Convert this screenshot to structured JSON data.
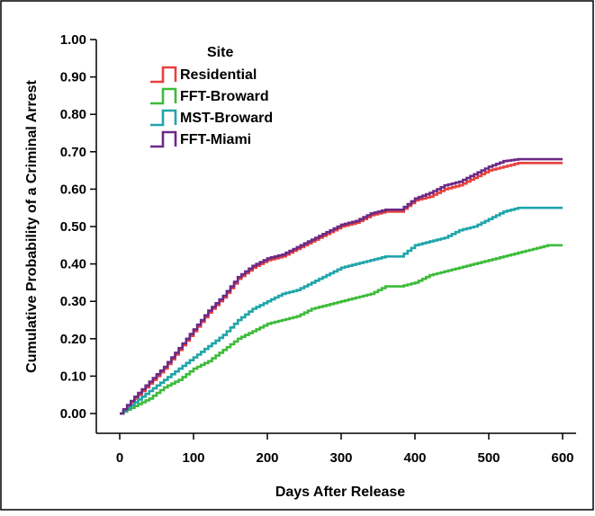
{
  "chart_data": {
    "type": "line",
    "step": true,
    "xlabel": "Days After Release",
    "ylabel": "Cumulative Probability of a Criminal Arrest",
    "xlim": [
      0,
      600
    ],
    "ylim": [
      0,
      1.0
    ],
    "xticks": [
      "0",
      "100",
      "200",
      "300",
      "400",
      "500",
      "600"
    ],
    "yticks": [
      "0.00",
      "0.10",
      "0.20",
      "0.30",
      "0.40",
      "0.50",
      "0.60",
      "0.70",
      "0.80",
      "0.90",
      "1.00"
    ],
    "grid": false,
    "legend": {
      "title": "Site",
      "position": "top-left"
    },
    "series": [
      {
        "name": "Residential",
        "color": "#e8413c",
        "x": [
          0,
          20,
          40,
          60,
          80,
          100,
          120,
          140,
          160,
          180,
          200,
          220,
          240,
          260,
          280,
          300,
          320,
          340,
          360,
          380,
          400,
          420,
          440,
          460,
          480,
          500,
          520,
          540,
          560,
          580,
          600
        ],
        "y": [
          0.0,
          0.04,
          0.08,
          0.12,
          0.17,
          0.22,
          0.27,
          0.31,
          0.36,
          0.39,
          0.41,
          0.42,
          0.44,
          0.46,
          0.48,
          0.5,
          0.51,
          0.53,
          0.54,
          0.54,
          0.57,
          0.58,
          0.6,
          0.61,
          0.63,
          0.65,
          0.66,
          0.67,
          0.67,
          0.67,
          0.67
        ]
      },
      {
        "name": "FFT-Broward",
        "color": "#3dbb3a",
        "x": [
          0,
          20,
          40,
          60,
          80,
          100,
          120,
          140,
          160,
          180,
          200,
          220,
          240,
          260,
          280,
          300,
          320,
          340,
          360,
          380,
          400,
          420,
          440,
          460,
          480,
          500,
          520,
          540,
          560,
          580,
          600
        ],
        "y": [
          0.0,
          0.02,
          0.04,
          0.07,
          0.09,
          0.12,
          0.14,
          0.17,
          0.2,
          0.22,
          0.24,
          0.25,
          0.26,
          0.28,
          0.29,
          0.3,
          0.31,
          0.32,
          0.34,
          0.34,
          0.35,
          0.37,
          0.38,
          0.39,
          0.4,
          0.41,
          0.42,
          0.43,
          0.44,
          0.45,
          0.45
        ]
      },
      {
        "name": "MST-Broward",
        "color": "#1fa5a9",
        "x": [
          0,
          20,
          40,
          60,
          80,
          100,
          120,
          140,
          160,
          180,
          200,
          220,
          240,
          260,
          280,
          300,
          320,
          340,
          360,
          380,
          400,
          420,
          440,
          460,
          480,
          500,
          520,
          540,
          560,
          580,
          600
        ],
        "y": [
          0.0,
          0.03,
          0.06,
          0.09,
          0.12,
          0.15,
          0.18,
          0.21,
          0.25,
          0.28,
          0.3,
          0.32,
          0.33,
          0.35,
          0.37,
          0.39,
          0.4,
          0.41,
          0.42,
          0.42,
          0.45,
          0.46,
          0.47,
          0.49,
          0.5,
          0.52,
          0.54,
          0.55,
          0.55,
          0.55,
          0.55
        ]
      },
      {
        "name": "FFT-Miami",
        "color": "#6c2a86",
        "x": [
          0,
          20,
          40,
          60,
          80,
          100,
          120,
          140,
          160,
          180,
          200,
          220,
          240,
          260,
          280,
          300,
          320,
          340,
          360,
          380,
          400,
          420,
          440,
          460,
          480,
          500,
          520,
          540,
          560,
          580,
          600
        ],
        "y": [
          0.0,
          0.045,
          0.085,
          0.125,
          0.175,
          0.225,
          0.275,
          0.315,
          0.365,
          0.395,
          0.415,
          0.425,
          0.445,
          0.465,
          0.485,
          0.505,
          0.515,
          0.535,
          0.545,
          0.545,
          0.575,
          0.59,
          0.61,
          0.62,
          0.64,
          0.66,
          0.675,
          0.68,
          0.68,
          0.68,
          0.68
        ]
      }
    ]
  }
}
